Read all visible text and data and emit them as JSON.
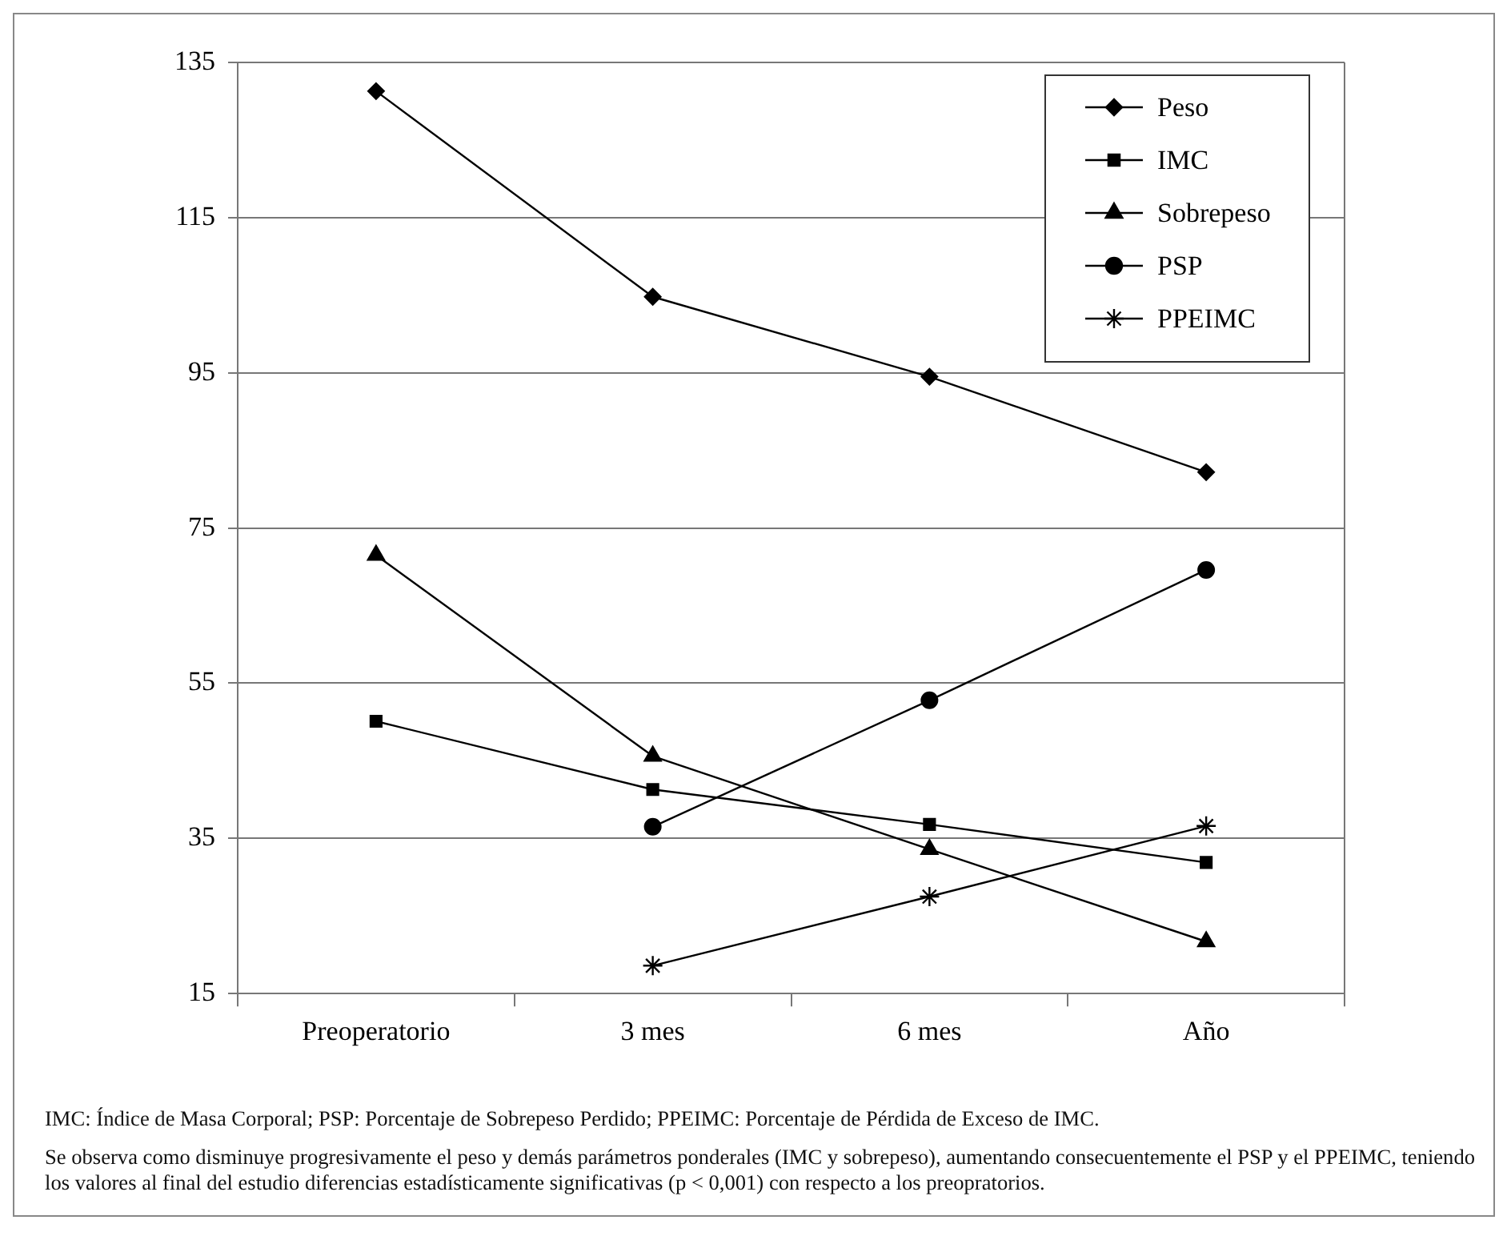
{
  "chart_data": {
    "type": "line",
    "categories": [
      "Preoperatorio",
      "3 mes",
      "6 mes",
      "Año"
    ],
    "series": [
      {
        "name": "Peso",
        "color": "#000000",
        "marker": "diamond",
        "values": [
          131.3,
          104.8,
          94.5,
          82.2
        ]
      },
      {
        "name": "IMC",
        "color": "#000000",
        "marker": "square",
        "values": [
          50.1,
          41.3,
          36.8,
          31.9
        ]
      },
      {
        "name": "Sobrepeso",
        "color": "#000000",
        "marker": "triangle",
        "values": [
          71.5,
          45.6,
          33.6,
          21.7
        ]
      },
      {
        "name": "PSP",
        "color": "#000000",
        "marker": "circle",
        "values": [
          null,
          36.5,
          52.8,
          69.6
        ]
      },
      {
        "name": "PPEIMC",
        "color": "#000000",
        "marker": "cross",
        "values": [
          null,
          18.6,
          27.5,
          36.6
        ]
      }
    ],
    "ylim": [
      15,
      135
    ],
    "yticks": [
      15,
      35,
      55,
      75,
      95,
      115,
      135
    ],
    "grid": "y",
    "legend": "top right",
    "annotations": [
      "IMC: Índice de Masa Corporal; PSP: Porcentaje de Sobrepeso Perdido; PPEIMC: Porcentaje de Pérdida de Exceso de IMC.",
      "Se observa como disminuye progresivamente el peso y demás parámetros ponderales (IMC y sobrepeso), aumentando consecuentemente el PSP y el PPEIMC, teniendo los valores al final del estudio diferencias estadísticamente significativas (p < 0,001) con respecto a los preopratorios."
    ]
  }
}
